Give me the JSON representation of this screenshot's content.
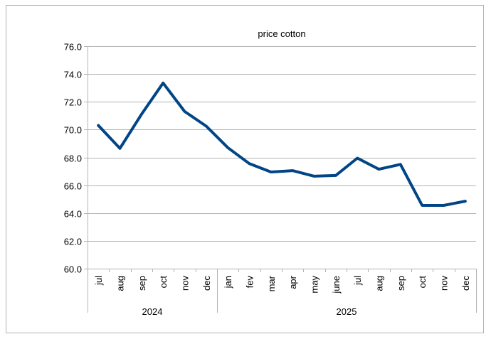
{
  "chart_data": {
    "type": "line",
    "title": "price cotton",
    "xlabel": "",
    "ylabel": "",
    "categories": [
      "jul",
      "aug",
      "sep",
      "oct",
      "nov",
      "dec",
      "jan",
      "fev",
      "mar",
      "apr",
      "may",
      "june",
      "jul",
      "aug",
      "sep",
      "oct",
      "nov",
      "dec"
    ],
    "groups": [
      {
        "label": "2024",
        "start": 0,
        "end": 5
      },
      {
        "label": "2025",
        "start": 6,
        "end": 17
      }
    ],
    "series": [
      {
        "values": [
          70.3,
          68.65,
          71.1,
          73.35,
          71.3,
          70.25,
          68.7,
          67.55,
          66.95,
          67.05,
          66.65,
          66.7,
          67.95,
          67.15,
          67.5,
          64.55,
          64.55,
          64.85
        ]
      }
    ],
    "ylim": [
      60.0,
      76.0
    ],
    "yticks": [
      "60.0",
      "62.0",
      "64.0",
      "66.0",
      "68.0",
      "70.0",
      "72.0",
      "74.0",
      "76.0"
    ],
    "grid": true,
    "legend": "none",
    "line_color": "#004586",
    "grid_color": "#b3b3b3"
  }
}
